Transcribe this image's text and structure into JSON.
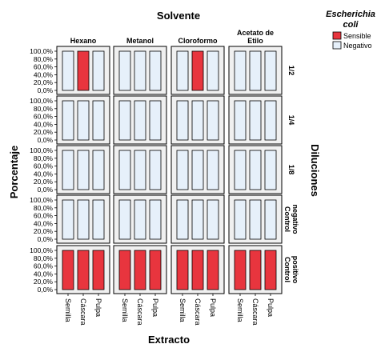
{
  "chart_data": {
    "type": "bar",
    "layout": "small-multiples",
    "title": "Solvente",
    "xlabel": "Extracto",
    "ylabel": "Porcentaje",
    "row_title": "Diluciones",
    "legend": {
      "title": "Escherichia coli",
      "placement": "top-right",
      "entries": [
        {
          "name": "Sensible",
          "color": "#e8353e"
        },
        {
          "name": "Negativo",
          "color": "#e6f0fa"
        }
      ]
    },
    "columns": [
      "Hexano",
      "Metanol",
      "Cloroformo",
      "Acetato de Etilo"
    ],
    "rows": [
      "1/2",
      "1/4",
      "1/8",
      "Control negativo",
      "Control positivo"
    ],
    "categories": [
      "Semilla",
      "Cáscara",
      "Pulpa"
    ],
    "yticks": [
      "100,0%",
      "80,0%",
      "60,0%",
      "40,0%",
      "20,0%",
      "0,0%"
    ],
    "ylim": [
      0,
      100
    ],
    "grid": false,
    "panels": [
      {
        "row": "1/2",
        "column": "Hexano",
        "values": [
          100,
          100,
          100
        ],
        "result": [
          "Negativo",
          "Sensible",
          "Negativo"
        ]
      },
      {
        "row": "1/2",
        "column": "Metanol",
        "values": [
          100,
          100,
          100
        ],
        "result": [
          "Negativo",
          "Negativo",
          "Negativo"
        ]
      },
      {
        "row": "1/2",
        "column": "Cloroformo",
        "values": [
          100,
          100,
          100
        ],
        "result": [
          "Negativo",
          "Sensible",
          "Negativo"
        ]
      },
      {
        "row": "1/2",
        "column": "Acetato de Etilo",
        "values": [
          100,
          100,
          100
        ],
        "result": [
          "Negativo",
          "Negativo",
          "Negativo"
        ]
      },
      {
        "row": "1/4",
        "column": "Hexano",
        "values": [
          100,
          100,
          100
        ],
        "result": [
          "Negativo",
          "Negativo",
          "Negativo"
        ]
      },
      {
        "row": "1/4",
        "column": "Metanol",
        "values": [
          100,
          100,
          100
        ],
        "result": [
          "Negativo",
          "Negativo",
          "Negativo"
        ]
      },
      {
        "row": "1/4",
        "column": "Cloroformo",
        "values": [
          100,
          100,
          100
        ],
        "result": [
          "Negativo",
          "Negativo",
          "Negativo"
        ]
      },
      {
        "row": "1/4",
        "column": "Acetato de Etilo",
        "values": [
          100,
          100,
          100
        ],
        "result": [
          "Negativo",
          "Negativo",
          "Negativo"
        ]
      },
      {
        "row": "1/8",
        "column": "Hexano",
        "values": [
          100,
          100,
          100
        ],
        "result": [
          "Negativo",
          "Negativo",
          "Negativo"
        ]
      },
      {
        "row": "1/8",
        "column": "Metanol",
        "values": [
          100,
          100,
          100
        ],
        "result": [
          "Negativo",
          "Negativo",
          "Negativo"
        ]
      },
      {
        "row": "1/8",
        "column": "Cloroformo",
        "values": [
          100,
          100,
          100
        ],
        "result": [
          "Negativo",
          "Negativo",
          "Negativo"
        ]
      },
      {
        "row": "1/8",
        "column": "Acetato de Etilo",
        "values": [
          100,
          100,
          100
        ],
        "result": [
          "Negativo",
          "Negativo",
          "Negativo"
        ]
      },
      {
        "row": "Control negativo",
        "column": "Hexano",
        "values": [
          100,
          100,
          100
        ],
        "result": [
          "Negativo",
          "Negativo",
          "Negativo"
        ]
      },
      {
        "row": "Control negativo",
        "column": "Metanol",
        "values": [
          100,
          100,
          100
        ],
        "result": [
          "Negativo",
          "Negativo",
          "Negativo"
        ]
      },
      {
        "row": "Control negativo",
        "column": "Cloroformo",
        "values": [
          100,
          100,
          100
        ],
        "result": [
          "Negativo",
          "Negativo",
          "Negativo"
        ]
      },
      {
        "row": "Control negativo",
        "column": "Acetato de Etilo",
        "values": [
          100,
          100,
          100
        ],
        "result": [
          "Negativo",
          "Negativo",
          "Negativo"
        ]
      },
      {
        "row": "Control positivo",
        "column": "Hexano",
        "values": [
          100,
          100,
          100
        ],
        "result": [
          "Sensible",
          "Sensible",
          "Sensible"
        ]
      },
      {
        "row": "Control positivo",
        "column": "Metanol",
        "values": [
          100,
          100,
          100
        ],
        "result": [
          "Sensible",
          "Sensible",
          "Sensible"
        ]
      },
      {
        "row": "Control positivo",
        "column": "Cloroformo",
        "values": [
          100,
          100,
          100
        ],
        "result": [
          "Sensible",
          "Sensible",
          "Sensible"
        ]
      },
      {
        "row": "Control positivo",
        "column": "Acetato de Etilo",
        "values": [
          100,
          100,
          100
        ],
        "result": [
          "Sensible",
          "Sensible",
          "Sensible"
        ]
      }
    ]
  }
}
